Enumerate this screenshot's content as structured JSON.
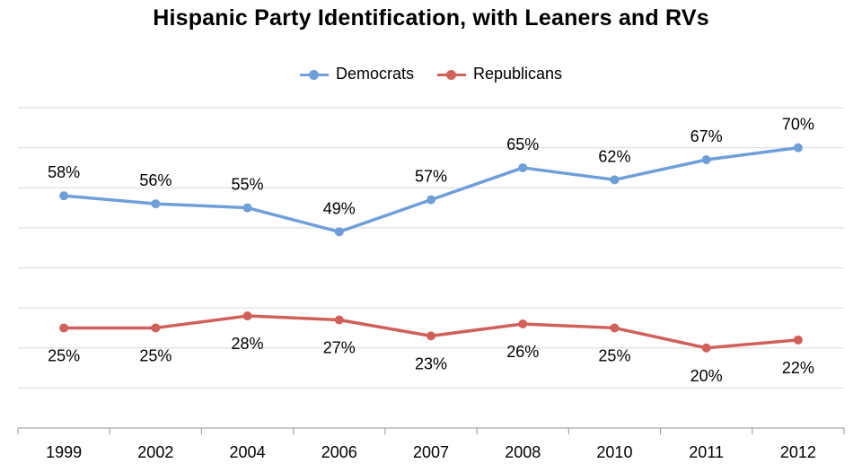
{
  "chart_data": {
    "type": "line",
    "title": "Hispanic Party Identification, with Leaners and RVs",
    "categories": [
      "1999",
      "2002",
      "2004",
      "2006",
      "2007",
      "2008",
      "2010",
      "2011",
      "2012"
    ],
    "series": [
      {
        "name": "Democrats",
        "color": "#6f9fd8",
        "values": [
          58,
          56,
          55,
          49,
          57,
          65,
          62,
          67,
          70
        ],
        "labels": [
          "58%",
          "56%",
          "55%",
          "49%",
          "57%",
          "65%",
          "62%",
          "67%",
          "70%"
        ]
      },
      {
        "name": "Republicans",
        "color": "#d0605a",
        "values": [
          25,
          25,
          28,
          27,
          23,
          26,
          25,
          20,
          22
        ],
        "labels": [
          "25%",
          "25%",
          "28%",
          "27%",
          "23%",
          "26%",
          "25%",
          "20%",
          "22%"
        ]
      }
    ],
    "ylim": [
      0,
      80
    ],
    "xlabel": "",
    "ylabel": "",
    "grid": true,
    "legend": "top-center"
  }
}
